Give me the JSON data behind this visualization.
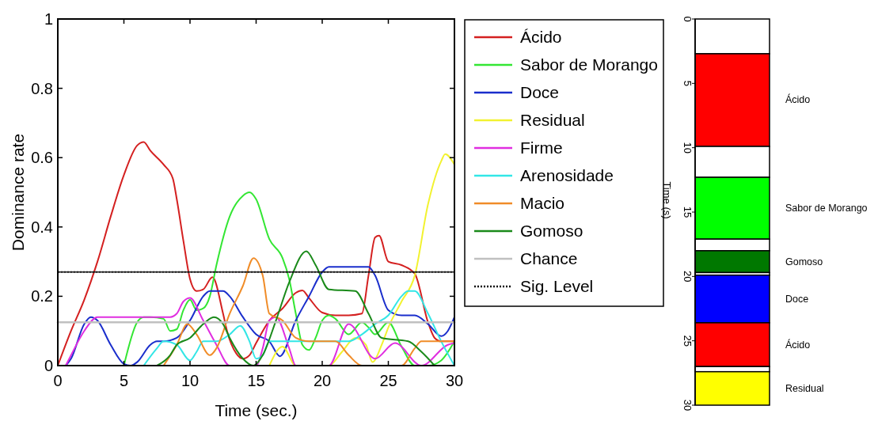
{
  "chart_data": [
    {
      "type": "line",
      "xlabel": "Time (sec.)",
      "ylabel": "Dominance rate",
      "xlim": [
        0,
        30
      ],
      "ylim": [
        0,
        1
      ],
      "xticks": [
        0,
        5,
        10,
        15,
        20,
        25,
        30
      ],
      "yticks": [
        0,
        0.2,
        0.4,
        0.6,
        0.8,
        1
      ],
      "legend": "right",
      "line_style": "solid",
      "grid": false,
      "series": [
        {
          "name": "Ácido",
          "color": "#d42020",
          "x": [
            0,
            1,
            2,
            3,
            4,
            5,
            6,
            6.5,
            7,
            8,
            8.7,
            9,
            9.5,
            10,
            10.5,
            11,
            11.7,
            12.5,
            12.8,
            13.5,
            14,
            14.5,
            15,
            16,
            17,
            18,
            18.5,
            19,
            20,
            21,
            22,
            23,
            23.5,
            24,
            24.3,
            25,
            26,
            27,
            28,
            28.5,
            29,
            30
          ],
          "values": [
            0,
            0.1,
            0.19,
            0.3,
            0.43,
            0.55,
            0.635,
            0.645,
            0.62,
            0.58,
            0.54,
            0.48,
            0.36,
            0.25,
            0.215,
            0.22,
            0.255,
            0.15,
            0.1,
            0.035,
            0.02,
            0.03,
            0.065,
            0.13,
            0.165,
            0.21,
            0.217,
            0.195,
            0.153,
            0.145,
            0.145,
            0.15,
            0.26,
            0.37,
            0.375,
            0.3,
            0.29,
            0.265,
            0.125,
            0.08,
            0.07,
            0.07
          ]
        },
        {
          "name": "Sabor de Morango",
          "color": "#33e633",
          "x": [
            5,
            6,
            6.5,
            7,
            8,
            8.5,
            9,
            9.5,
            10,
            10.5,
            11,
            11.5,
            12,
            13,
            14,
            14.5,
            15,
            16,
            17,
            17.5,
            18,
            18.5,
            19,
            19.5,
            20,
            20.5,
            21,
            22,
            23,
            23.5,
            24,
            25,
            26,
            27,
            28,
            29,
            30
          ],
          "values": [
            0,
            0.125,
            0.14,
            0.14,
            0.135,
            0.1,
            0.105,
            0.16,
            0.19,
            0.16,
            0.165,
            0.2,
            0.29,
            0.43,
            0.49,
            0.5,
            0.48,
            0.365,
            0.31,
            0.25,
            0.15,
            0.06,
            0.045,
            0.08,
            0.13,
            0.145,
            0.135,
            0.09,
            0.125,
            0.11,
            0.09,
            0.125,
            0.055,
            0,
            0,
            0.015,
            0.07
          ]
        },
        {
          "name": "Doce",
          "color": "#1a2ecc",
          "x": [
            0.6,
            1,
            2,
            2.5,
            3,
            4,
            5,
            5.5,
            6,
            7,
            7.5,
            8,
            9,
            10,
            11,
            11.5,
            12.5,
            13,
            14,
            15,
            16,
            16.8,
            18,
            19,
            20,
            20.5,
            23.5,
            24,
            25,
            26,
            27,
            28,
            29,
            29.5,
            30
          ],
          "values": [
            0,
            0.02,
            0.12,
            0.14,
            0.13,
            0.06,
            0.005,
            0,
            0.01,
            0.06,
            0.07,
            0.07,
            0.08,
            0.13,
            0.2,
            0.215,
            0.215,
            0.2,
            0.14,
            0.09,
            0.07,
            0.027,
            0.13,
            0.2,
            0.27,
            0.285,
            0.285,
            0.26,
            0.16,
            0.145,
            0.145,
            0.12,
            0.085,
            0.1,
            0.14
          ]
        },
        {
          "name": "Residual",
          "color": "#f2f230",
          "x": [
            16,
            17,
            18,
            20.5,
            21.5,
            22.5,
            23.3,
            23.8,
            24.5,
            25,
            26,
            27,
            28,
            29,
            29.3,
            30
          ],
          "values": [
            0,
            0.055,
            0,
            0,
            0.04,
            0.08,
            0.06,
            0.01,
            0.06,
            0.11,
            0.185,
            0.26,
            0.465,
            0.59,
            0.61,
            0.58
          ]
        },
        {
          "name": "Firme",
          "color": "#e02ee0",
          "x": [
            0.6,
            1,
            2,
            3,
            8.5,
            9,
            9.5,
            10,
            11,
            12,
            13,
            15,
            15.5,
            16,
            16.5,
            17.5,
            18,
            20.5,
            22,
            24,
            25.5,
            27.5,
            29.5,
            30
          ],
          "values": [
            0,
            0.03,
            0.1,
            0.14,
            0.14,
            0.15,
            0.185,
            0.195,
            0.13,
            0.06,
            0,
            0,
            0.05,
            0.13,
            0.14,
            0.05,
            0,
            0,
            0.12,
            0.02,
            0.065,
            0,
            0.06,
            0.065
          ]
        },
        {
          "name": "Arenosidade",
          "color": "#33e6e6",
          "x": [
            6.5,
            7.5,
            8,
            9,
            10,
            10.5,
            11,
            12,
            13,
            13.8,
            14.5,
            15,
            15.5,
            16,
            22,
            23,
            24,
            25,
            26,
            26.5,
            27,
            28,
            29,
            30
          ],
          "values": [
            0,
            0.05,
            0.07,
            0.06,
            0.015,
            0.04,
            0.07,
            0.07,
            0.09,
            0.115,
            0.07,
            0.02,
            0.03,
            0.07,
            0.07,
            0.09,
            0.12,
            0.145,
            0.2,
            0.215,
            0.215,
            0.15,
            0.07,
            0
          ]
        },
        {
          "name": "Macio",
          "color": "#f08c28",
          "x": [
            8,
            9,
            9.8,
            10.5,
            11.5,
            12,
            13,
            14,
            14.8,
            15.5,
            16,
            17,
            18,
            19,
            21,
            22,
            23,
            26,
            27,
            27.5,
            30
          ],
          "values": [
            0,
            0.06,
            0.12,
            0.09,
            0.03,
            0.05,
            0.15,
            0.23,
            0.31,
            0.26,
            0.15,
            0.13,
            0.08,
            0.07,
            0.07,
            0.03,
            0,
            0,
            0.05,
            0.07,
            0.07
          ]
        },
        {
          "name": "Gomoso",
          "color": "#1a8a1a",
          "x": [
            7.5,
            8.5,
            9,
            10,
            11,
            11.8,
            12.5,
            13,
            14,
            14.8,
            15.5,
            16.5,
            17.5,
            18.8,
            19.5,
            20.5,
            22.5,
            23.5,
            24.5,
            26.5,
            27.5,
            28.5
          ],
          "values": [
            0,
            0.03,
            0.06,
            0.08,
            0.12,
            0.14,
            0.12,
            0.08,
            0.02,
            0,
            0.03,
            0.13,
            0.24,
            0.33,
            0.29,
            0.22,
            0.215,
            0.15,
            0.08,
            0.07,
            0.04,
            0
          ]
        },
        {
          "name": "Chance",
          "color": "#c0c0c0",
          "x": [
            0,
            30
          ],
          "values": [
            0.125,
            0.125
          ]
        },
        {
          "name": "Sig. Level",
          "color": "#111111",
          "line_style": "dotted",
          "x": [
            0,
            30
          ],
          "values": [
            0.27,
            0.27
          ]
        }
      ]
    },
    {
      "type": "bar",
      "stacked": true,
      "categories": [
        null
      ],
      "ylabel": "Time (s)",
      "ylim": [
        30,
        0
      ],
      "yticks": [
        0,
        5,
        10,
        15,
        20,
        25,
        30
      ],
      "tick_labels": "y",
      "series": [
        {
          "color": "#ffffff",
          "values": [
            2.7
          ]
        },
        {
          "name": "Ácido",
          "color": "#ff0000",
          "values": [
            7.2
          ]
        },
        {
          "color": "#ffffff",
          "values": [
            2.4
          ]
        },
        {
          "name": "Sabor de Morango",
          "color": "#00ff00",
          "values": [
            4.8
          ]
        },
        {
          "color": "#ffffff",
          "values": [
            0.9
          ]
        },
        {
          "name": "Gomoso",
          "color": "#007800",
          "values": [
            1.7
          ]
        },
        {
          "color": "#ffffff",
          "values": [
            0.2
          ]
        },
        {
          "name": "Doce",
          "color": "#0000ff",
          "values": [
            3.7
          ]
        },
        {
          "name": "Ácido",
          "color": "#ff0000",
          "values": [
            3.4
          ]
        },
        {
          "color": "#ffffff",
          "values": [
            0.4
          ]
        },
        {
          "name": "Residual",
          "color": "#ffff00",
          "values": [
            2.6
          ]
        }
      ]
    }
  ]
}
